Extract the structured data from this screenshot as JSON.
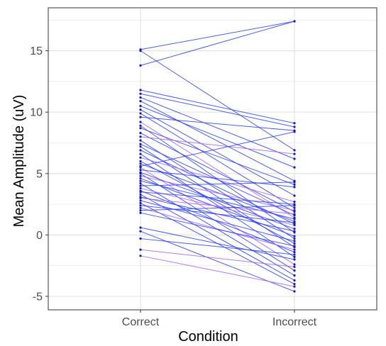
{
  "chart_data": {
    "type": "line",
    "title": "",
    "xlabel": "Condition",
    "ylabel": "Mean Amplitude (uV)",
    "categories": [
      "Correct",
      "Incorrect"
    ],
    "ylim": [
      -6.1,
      18.5
    ],
    "yticks": [
      -5,
      0,
      5,
      10,
      15
    ],
    "grid": true,
    "legend": "none",
    "colors": {
      "purple": "#a463f2",
      "blue": "#2c3ef0",
      "point": "#1a1aa6",
      "panel_border": "#333333",
      "grid": "#e3e3e3"
    },
    "pairs": [
      {
        "correct": 15.1,
        "incorrect": 17.4,
        "color": "blue"
      },
      {
        "correct": 13.8,
        "incorrect": 17.4,
        "color": "blue"
      },
      {
        "correct": 15.0,
        "incorrect": 6.9,
        "color": "blue"
      },
      {
        "correct": 11.8,
        "incorrect": 9.1,
        "color": "blue"
      },
      {
        "correct": 11.5,
        "incorrect": 8.8,
        "color": "blue"
      },
      {
        "correct": 11.2,
        "incorrect": 6.2,
        "color": "blue"
      },
      {
        "correct": 10.9,
        "incorrect": 4.4,
        "color": "blue"
      },
      {
        "correct": 10.5,
        "incorrect": 5.5,
        "color": "blue"
      },
      {
        "correct": 10.2,
        "incorrect": 3.2,
        "color": "blue"
      },
      {
        "correct": 9.9,
        "incorrect": 2.2,
        "color": "blue"
      },
      {
        "correct": 9.6,
        "incorrect": 8.5,
        "color": "blue"
      },
      {
        "correct": 9.2,
        "incorrect": 1.4,
        "color": "purple"
      },
      {
        "correct": 8.9,
        "incorrect": 0.2,
        "color": "blue"
      },
      {
        "correct": 8.7,
        "incorrect": 4.1,
        "color": "blue"
      },
      {
        "correct": 8.3,
        "incorrect": 1.9,
        "color": "blue"
      },
      {
        "correct": 8.0,
        "incorrect": 6.6,
        "color": "purple"
      },
      {
        "correct": 7.7,
        "incorrect": -0.3,
        "color": "blue"
      },
      {
        "correct": 7.4,
        "incorrect": 1.6,
        "color": "blue"
      },
      {
        "correct": 7.2,
        "incorrect": -1.0,
        "color": "blue"
      },
      {
        "correct": 6.9,
        "incorrect": 0.9,
        "color": "blue"
      },
      {
        "correct": 6.6,
        "incorrect": -1.8,
        "color": "blue"
      },
      {
        "correct": 6.3,
        "incorrect": 2.7,
        "color": "purple"
      },
      {
        "correct": 6.0,
        "incorrect": -0.7,
        "color": "blue"
      },
      {
        "correct": 5.8,
        "incorrect": 1.1,
        "color": "blue"
      },
      {
        "correct": 5.6,
        "incorrect": 8.4,
        "color": "blue"
      },
      {
        "correct": 5.5,
        "incorrect": -2.4,
        "color": "purple"
      },
      {
        "correct": 5.3,
        "incorrect": 3.9,
        "color": "blue"
      },
      {
        "correct": 5.1,
        "incorrect": 0.5,
        "color": "blue"
      },
      {
        "correct": 5.0,
        "incorrect": -2.9,
        "color": "blue"
      },
      {
        "correct": 4.8,
        "incorrect": 2.0,
        "color": "purple"
      },
      {
        "correct": 4.6,
        "incorrect": -0.1,
        "color": "blue"
      },
      {
        "correct": 4.4,
        "incorrect": 1.3,
        "color": "blue"
      },
      {
        "correct": 4.2,
        "incorrect": -3.3,
        "color": "blue"
      },
      {
        "correct": 4.0,
        "incorrect": 4.3,
        "color": "blue"
      },
      {
        "correct": 3.8,
        "incorrect": 0.8,
        "color": "purple"
      },
      {
        "correct": 3.6,
        "incorrect": -1.4,
        "color": "blue"
      },
      {
        "correct": 3.5,
        "incorrect": 2.5,
        "color": "blue"
      },
      {
        "correct": 3.3,
        "incorrect": -3.7,
        "color": "blue"
      },
      {
        "correct": 3.1,
        "incorrect": 0.3,
        "color": "blue"
      },
      {
        "correct": 3.0,
        "incorrect": 1.7,
        "color": "purple"
      },
      {
        "correct": 2.8,
        "incorrect": -0.5,
        "color": "blue"
      },
      {
        "correct": 2.6,
        "incorrect": -4.0,
        "color": "blue"
      },
      {
        "correct": 2.4,
        "incorrect": 1.0,
        "color": "blue"
      },
      {
        "correct": 2.2,
        "incorrect": -1.2,
        "color": "purple"
      },
      {
        "correct": 2.0,
        "incorrect": 2.4,
        "color": "blue"
      },
      {
        "correct": 1.8,
        "incorrect": -0.9,
        "color": "blue"
      },
      {
        "correct": 0.6,
        "incorrect": -2.0,
        "color": "blue"
      },
      {
        "correct": 0.3,
        "incorrect": -4.6,
        "color": "blue"
      },
      {
        "correct": -0.3,
        "incorrect": -1.6,
        "color": "blue"
      },
      {
        "correct": -1.2,
        "incorrect": -2.6,
        "color": "purple"
      },
      {
        "correct": -1.7,
        "incorrect": -4.2,
        "color": "purple"
      }
    ]
  }
}
